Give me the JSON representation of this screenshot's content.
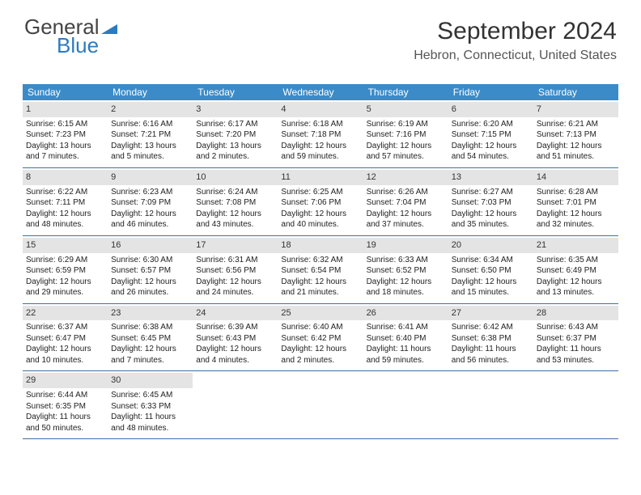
{
  "logo": {
    "line1": "General",
    "line2": "Blue"
  },
  "colors": {
    "header_bg": "#3b8bc8",
    "header_text": "#ffffff",
    "daynum_bg": "#e4e4e4",
    "week_border": "#3b6fa5",
    "logo_blue": "#2b7bbf"
  },
  "title": "September 2024",
  "location": "Hebron, Connecticut, United States",
  "weekdays": [
    "Sunday",
    "Monday",
    "Tuesday",
    "Wednesday",
    "Thursday",
    "Friday",
    "Saturday"
  ],
  "weeks": [
    [
      {
        "num": "1",
        "sunrise": "Sunrise: 6:15 AM",
        "sunset": "Sunset: 7:23 PM",
        "daylight": "Daylight: 13 hours and 7 minutes."
      },
      {
        "num": "2",
        "sunrise": "Sunrise: 6:16 AM",
        "sunset": "Sunset: 7:21 PM",
        "daylight": "Daylight: 13 hours and 5 minutes."
      },
      {
        "num": "3",
        "sunrise": "Sunrise: 6:17 AM",
        "sunset": "Sunset: 7:20 PM",
        "daylight": "Daylight: 13 hours and 2 minutes."
      },
      {
        "num": "4",
        "sunrise": "Sunrise: 6:18 AM",
        "sunset": "Sunset: 7:18 PM",
        "daylight": "Daylight: 12 hours and 59 minutes."
      },
      {
        "num": "5",
        "sunrise": "Sunrise: 6:19 AM",
        "sunset": "Sunset: 7:16 PM",
        "daylight": "Daylight: 12 hours and 57 minutes."
      },
      {
        "num": "6",
        "sunrise": "Sunrise: 6:20 AM",
        "sunset": "Sunset: 7:15 PM",
        "daylight": "Daylight: 12 hours and 54 minutes."
      },
      {
        "num": "7",
        "sunrise": "Sunrise: 6:21 AM",
        "sunset": "Sunset: 7:13 PM",
        "daylight": "Daylight: 12 hours and 51 minutes."
      }
    ],
    [
      {
        "num": "8",
        "sunrise": "Sunrise: 6:22 AM",
        "sunset": "Sunset: 7:11 PM",
        "daylight": "Daylight: 12 hours and 48 minutes."
      },
      {
        "num": "9",
        "sunrise": "Sunrise: 6:23 AM",
        "sunset": "Sunset: 7:09 PM",
        "daylight": "Daylight: 12 hours and 46 minutes."
      },
      {
        "num": "10",
        "sunrise": "Sunrise: 6:24 AM",
        "sunset": "Sunset: 7:08 PM",
        "daylight": "Daylight: 12 hours and 43 minutes."
      },
      {
        "num": "11",
        "sunrise": "Sunrise: 6:25 AM",
        "sunset": "Sunset: 7:06 PM",
        "daylight": "Daylight: 12 hours and 40 minutes."
      },
      {
        "num": "12",
        "sunrise": "Sunrise: 6:26 AM",
        "sunset": "Sunset: 7:04 PM",
        "daylight": "Daylight: 12 hours and 37 minutes."
      },
      {
        "num": "13",
        "sunrise": "Sunrise: 6:27 AM",
        "sunset": "Sunset: 7:03 PM",
        "daylight": "Daylight: 12 hours and 35 minutes."
      },
      {
        "num": "14",
        "sunrise": "Sunrise: 6:28 AM",
        "sunset": "Sunset: 7:01 PM",
        "daylight": "Daylight: 12 hours and 32 minutes."
      }
    ],
    [
      {
        "num": "15",
        "sunrise": "Sunrise: 6:29 AM",
        "sunset": "Sunset: 6:59 PM",
        "daylight": "Daylight: 12 hours and 29 minutes."
      },
      {
        "num": "16",
        "sunrise": "Sunrise: 6:30 AM",
        "sunset": "Sunset: 6:57 PM",
        "daylight": "Daylight: 12 hours and 26 minutes."
      },
      {
        "num": "17",
        "sunrise": "Sunrise: 6:31 AM",
        "sunset": "Sunset: 6:56 PM",
        "daylight": "Daylight: 12 hours and 24 minutes."
      },
      {
        "num": "18",
        "sunrise": "Sunrise: 6:32 AM",
        "sunset": "Sunset: 6:54 PM",
        "daylight": "Daylight: 12 hours and 21 minutes."
      },
      {
        "num": "19",
        "sunrise": "Sunrise: 6:33 AM",
        "sunset": "Sunset: 6:52 PM",
        "daylight": "Daylight: 12 hours and 18 minutes."
      },
      {
        "num": "20",
        "sunrise": "Sunrise: 6:34 AM",
        "sunset": "Sunset: 6:50 PM",
        "daylight": "Daylight: 12 hours and 15 minutes."
      },
      {
        "num": "21",
        "sunrise": "Sunrise: 6:35 AM",
        "sunset": "Sunset: 6:49 PM",
        "daylight": "Daylight: 12 hours and 13 minutes."
      }
    ],
    [
      {
        "num": "22",
        "sunrise": "Sunrise: 6:37 AM",
        "sunset": "Sunset: 6:47 PM",
        "daylight": "Daylight: 12 hours and 10 minutes."
      },
      {
        "num": "23",
        "sunrise": "Sunrise: 6:38 AM",
        "sunset": "Sunset: 6:45 PM",
        "daylight": "Daylight: 12 hours and 7 minutes."
      },
      {
        "num": "24",
        "sunrise": "Sunrise: 6:39 AM",
        "sunset": "Sunset: 6:43 PM",
        "daylight": "Daylight: 12 hours and 4 minutes."
      },
      {
        "num": "25",
        "sunrise": "Sunrise: 6:40 AM",
        "sunset": "Sunset: 6:42 PM",
        "daylight": "Daylight: 12 hours and 2 minutes."
      },
      {
        "num": "26",
        "sunrise": "Sunrise: 6:41 AM",
        "sunset": "Sunset: 6:40 PM",
        "daylight": "Daylight: 11 hours and 59 minutes."
      },
      {
        "num": "27",
        "sunrise": "Sunrise: 6:42 AM",
        "sunset": "Sunset: 6:38 PM",
        "daylight": "Daylight: 11 hours and 56 minutes."
      },
      {
        "num": "28",
        "sunrise": "Sunrise: 6:43 AM",
        "sunset": "Sunset: 6:37 PM",
        "daylight": "Daylight: 11 hours and 53 minutes."
      }
    ],
    [
      {
        "num": "29",
        "sunrise": "Sunrise: 6:44 AM",
        "sunset": "Sunset: 6:35 PM",
        "daylight": "Daylight: 11 hours and 50 minutes."
      },
      {
        "num": "30",
        "sunrise": "Sunrise: 6:45 AM",
        "sunset": "Sunset: 6:33 PM",
        "daylight": "Daylight: 11 hours and 48 minutes."
      },
      {
        "empty": true
      },
      {
        "empty": true
      },
      {
        "empty": true
      },
      {
        "empty": true
      },
      {
        "empty": true
      }
    ]
  ]
}
